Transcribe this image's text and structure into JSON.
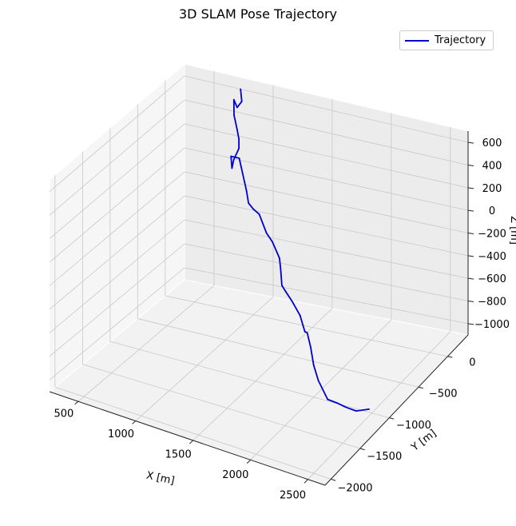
{
  "chart_data": {
    "type": "line",
    "projection": "3d",
    "title": "3D SLAM Pose Trajectory",
    "xlabel": "X [m]",
    "ylabel": "Y [m]",
    "zlabel": "Z [m]",
    "xlim": [
      250,
      2650
    ],
    "ylim": [
      -2100,
      350
    ],
    "zlim": [
      -1100,
      700
    ],
    "xticks": [
      500,
      1000,
      1500,
      2000,
      2500
    ],
    "yticks": [
      -2000,
      -1500,
      -1000,
      -500,
      0
    ],
    "zticks": [
      -1000,
      -800,
      -600,
      -400,
      -200,
      0,
      200,
      400,
      600
    ],
    "grid": true,
    "legend_position": "upper-right",
    "color": "#0000cc",
    "series": [
      {
        "name": "Trajectory",
        "x": [
          800,
          820,
          790,
          800,
          830,
          880,
          900,
          900,
          870,
          860,
          880,
          960,
          990,
          1080,
          1130,
          1200,
          1280,
          1380,
          1460,
          1540,
          1560,
          1580,
          1630,
          1700,
          1790,
          1860,
          1900,
          1950,
          2000,
          2070,
          2160,
          2230,
          2300,
          2380,
          2480
        ],
        "y": [
          190,
          170,
          150,
          70,
          10,
          -40,
          -50,
          -50,
          -80,
          -90,
          -150,
          -170,
          -200,
          -290,
          -360,
          -420,
          -480,
          -560,
          -620,
          -660,
          -680,
          -700,
          -730,
          -770,
          -810,
          -870,
          -910,
          -950,
          -1000,
          -1060,
          -1080,
          -1060,
          -1050,
          -1030,
          -1010
        ],
        "z": [
          680,
          590,
          540,
          640,
          540,
          450,
          380,
          300,
          210,
          140,
          270,
          280,
          230,
          80,
          20,
          10,
          10,
          -90,
          -120,
          -220,
          -300,
          -420,
          -450,
          -490,
          -570,
          -660,
          -640,
          -730,
          -840,
          -920,
          -1040,
          -1060,
          -1080,
          -1100,
          -1070
        ]
      }
    ]
  }
}
